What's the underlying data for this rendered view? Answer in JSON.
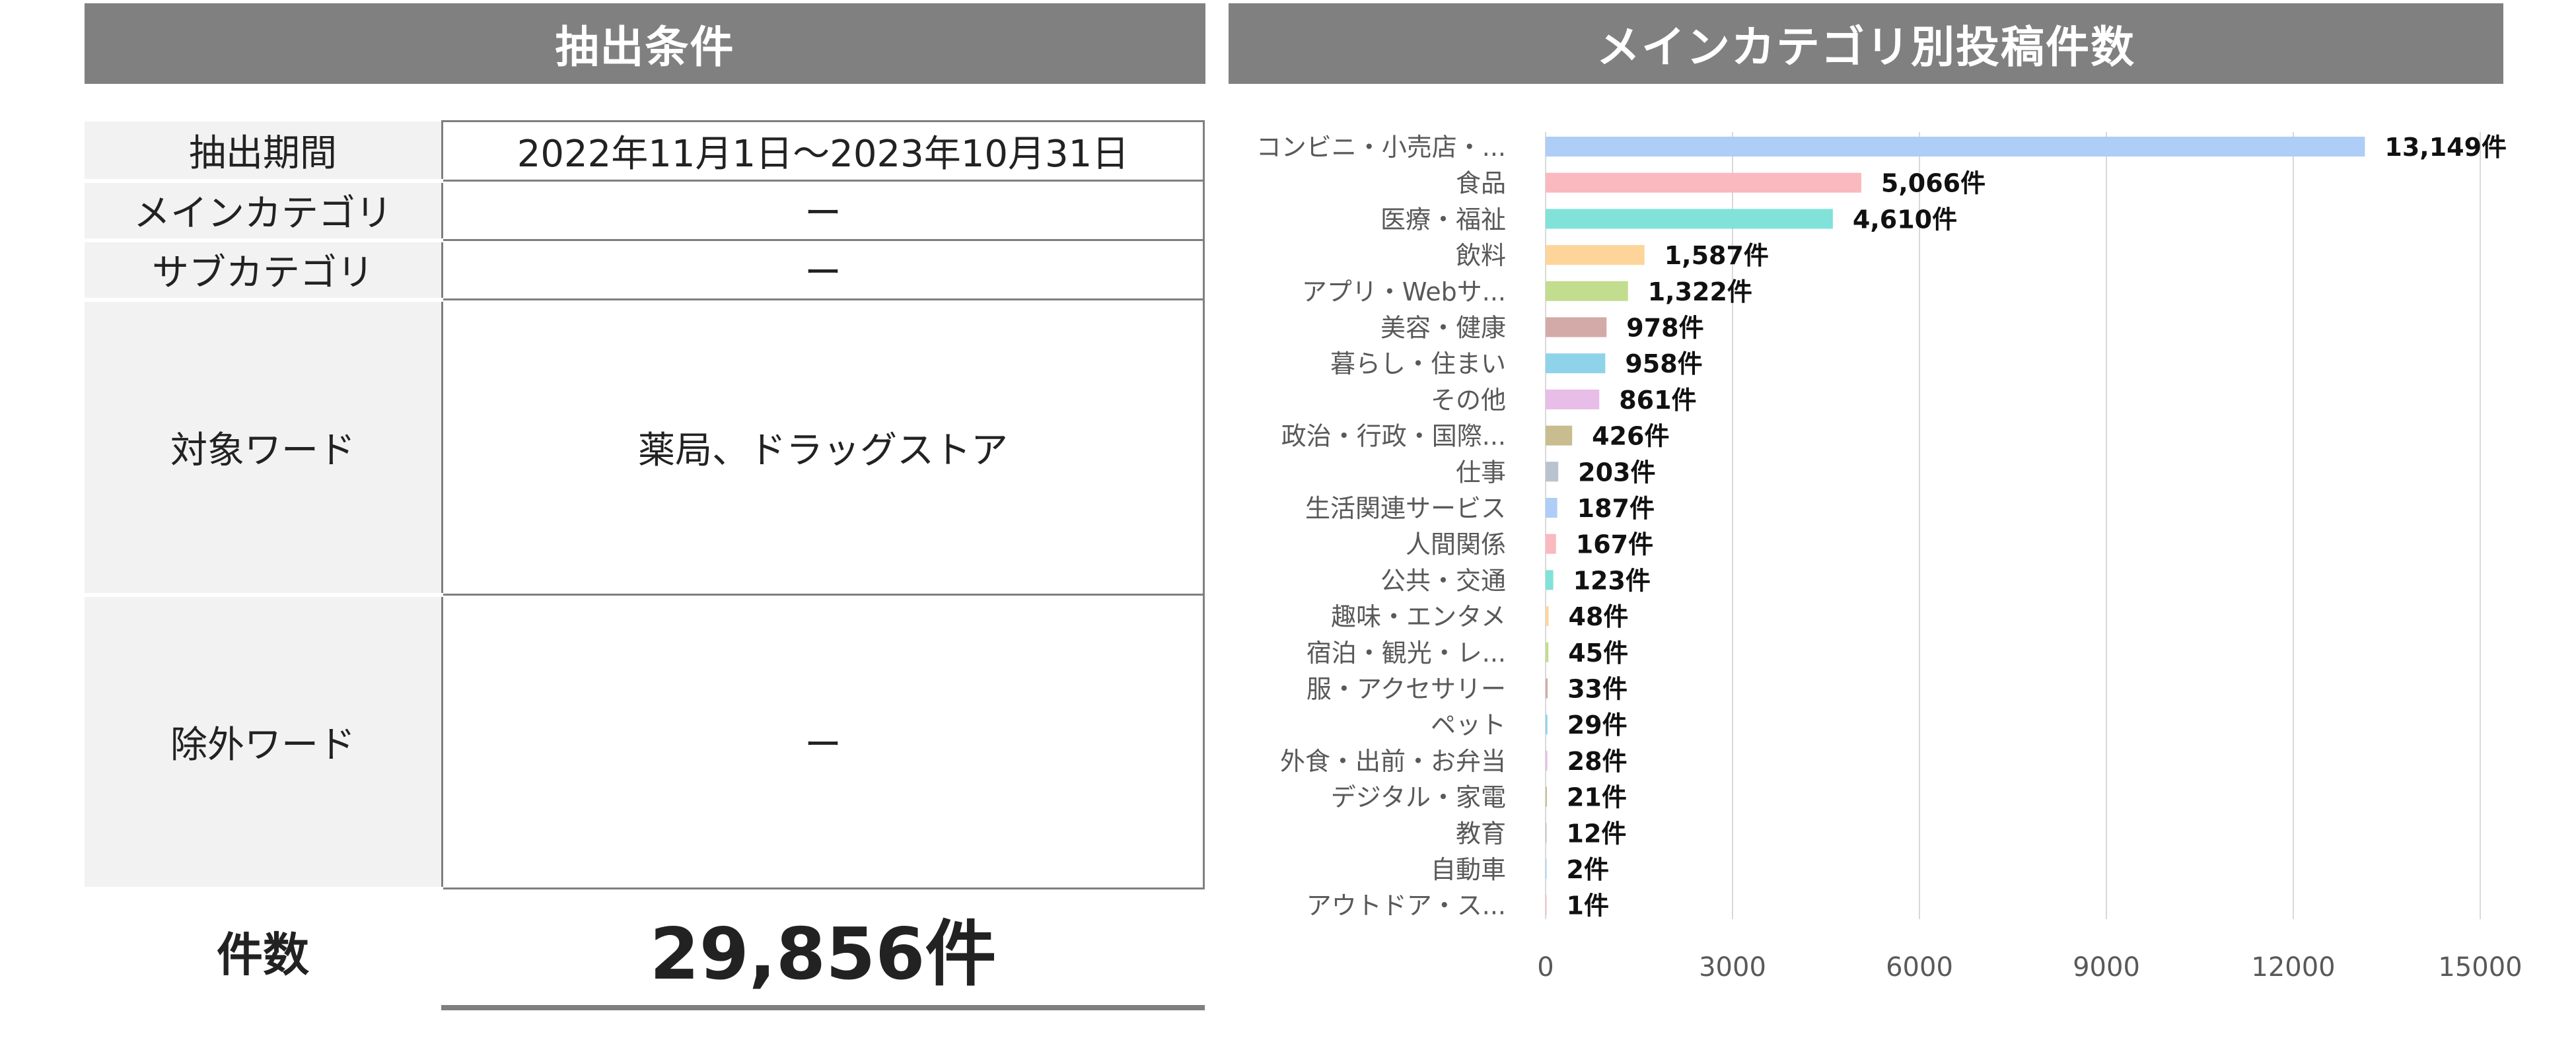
{
  "left_panel": {
    "title": "抽出条件",
    "rows": [
      {
        "label": "抽出期間",
        "value": "2022年11月1日～2023年10月31日"
      },
      {
        "label": "メインカテゴリ",
        "value": "ー"
      },
      {
        "label": "サブカテゴリ",
        "value": "ー"
      },
      {
        "label": "対象ワード",
        "value": "薬局、ドラッグストア"
      },
      {
        "label": "除外ワード",
        "value": "ー"
      }
    ],
    "count_label": "件数",
    "count_value": "29,856件"
  },
  "chart_data": {
    "type": "bar",
    "orientation": "horizontal",
    "title": "メインカテゴリ別投稿件数",
    "categories": [
      "コンビニ・小売店・...",
      "食品",
      "医療・福祉",
      "飲料",
      "アプリ・Webサ...",
      "美容・健康",
      "暮らし・住まい",
      "その他",
      "政治・行政・国際...",
      "仕事",
      "生活関連サービス",
      "人間関係",
      "公共・交通",
      "趣味・エンタメ",
      "宿泊・観光・レ...",
      "服・アクセサリー",
      "ペット",
      "外食・出前・お弁当",
      "デジタル・家電",
      "教育",
      "自動車",
      "アウトドア・ス..."
    ],
    "values": [
      13149,
      5066,
      4610,
      1587,
      1322,
      978,
      958,
      861,
      426,
      203,
      187,
      167,
      123,
      48,
      45,
      33,
      29,
      28,
      21,
      12,
      2,
      1
    ],
    "value_labels": [
      "13,149件",
      "5,066件",
      "4,610件",
      "1,587件",
      "1,322件",
      "978件",
      "958件",
      "861件",
      "426件",
      "203件",
      "187件",
      "167件",
      "123件",
      "48件",
      "45件",
      "33件",
      "29件",
      "28件",
      "21件",
      "12件",
      "2件",
      "1件"
    ],
    "colors": [
      "#aecdf7",
      "#f9b9be",
      "#80e2d8",
      "#fdd59a",
      "#c2dd8e",
      "#d3aaa7",
      "#8fd3ea",
      "#e8bde8",
      "#c9bd8f",
      "#b9c3cf",
      "#aecdf7",
      "#f9b9be",
      "#80e2d8",
      "#fdd59a",
      "#c2dd8e",
      "#d3aaa7",
      "#8fd3ea",
      "#e8bde8",
      "#c9bd8f",
      "#b9c3cf",
      "#aecdf7",
      "#f9b9be"
    ],
    "xlim": [
      0,
      15000
    ],
    "xticks": [
      "0",
      "3000",
      "6000",
      "9000",
      "12000",
      "15000"
    ],
    "grid": true,
    "legend": "none"
  }
}
